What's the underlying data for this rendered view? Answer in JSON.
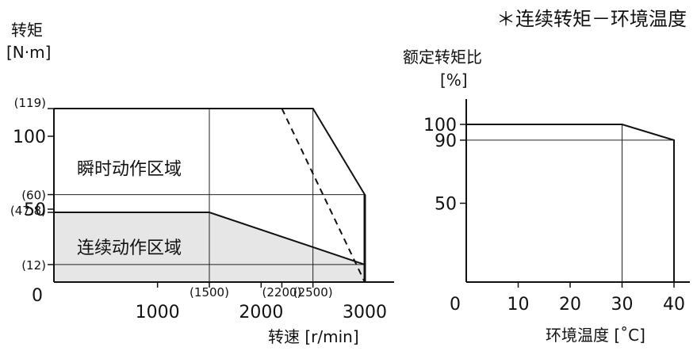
{
  "header_note": "＊连续转矩－环境温度",
  "chart_data": [
    {
      "type": "line",
      "ylabel": "转矩",
      "yunit": "[N·m]",
      "xlabel": "转速 [r/min]",
      "xlim": [
        0,
        3000
      ],
      "ylim": [
        0,
        119
      ],
      "x_ticks": [
        {
          "value": 1000,
          "label": "1000",
          "style": "major"
        },
        {
          "value": 1500,
          "label": "(1500)",
          "style": "minor"
        },
        {
          "value": 2000,
          "label": "2000",
          "style": "major"
        },
        {
          "value": 2200,
          "label": "(2200)",
          "style": "minor"
        },
        {
          "value": 2500,
          "label": "(2500)",
          "style": "minor"
        },
        {
          "value": 3000,
          "label": "3000",
          "style": "major"
        }
      ],
      "y_ticks": [
        {
          "value": 119,
          "label": "(119)",
          "style": "minor"
        },
        {
          "value": 100,
          "label": "100",
          "style": "major"
        },
        {
          "value": 60,
          "label": "(60)",
          "style": "minor"
        },
        {
          "value": 50,
          "label": "50",
          "style": "major"
        },
        {
          "value": 47.8,
          "label": "(47.8)",
          "style": "minor"
        },
        {
          "value": 12,
          "label": "(12)",
          "style": "minor"
        },
        {
          "value": 0,
          "label": "0",
          "style": "major"
        }
      ],
      "grid_x": [
        1500,
        2500
      ],
      "grid_y": [
        60,
        12
      ],
      "regions": [
        {
          "name": "瞬时动作区域",
          "label_at": [
            500,
            78
          ],
          "fill": "none",
          "points": [
            [
              0,
              0
            ],
            [
              0,
              119
            ],
            [
              2500,
              119
            ],
            [
              3000,
              60
            ],
            [
              3000,
              0
            ]
          ]
        },
        {
          "name": "连续动作区域",
          "label_at": [
            500,
            24
          ],
          "fill": "#e6e6e6",
          "points": [
            [
              0,
              0
            ],
            [
              0,
              47.8
            ],
            [
              1500,
              47.8
            ],
            [
              3000,
              12
            ],
            [
              3000,
              0
            ]
          ]
        }
      ],
      "dashed_line": [
        [
          2200,
          119
        ],
        [
          3000,
          0
        ]
      ]
    },
    {
      "type": "line",
      "ylabel": "额定转矩比",
      "yunit": "[%]",
      "xlabel": "环境温度 [˚C]",
      "xlim": [
        0,
        40
      ],
      "ylim": [
        0,
        100
      ],
      "x_ticks": [
        {
          "value": 0,
          "label": "0"
        },
        {
          "value": 10,
          "label": "10"
        },
        {
          "value": 20,
          "label": "20"
        },
        {
          "value": 30,
          "label": "30"
        },
        {
          "value": 40,
          "label": "40"
        }
      ],
      "y_ticks": [
        {
          "value": 100,
          "label": "100"
        },
        {
          "value": 90,
          "label": "90"
        },
        {
          "value": 50,
          "label": "50"
        }
      ],
      "series": [
        {
          "values": [
            [
              0,
              100
            ],
            [
              30,
              100
            ],
            [
              40,
              90
            ],
            [
              40,
              0
            ]
          ]
        }
      ],
      "grid_x": [
        30
      ],
      "grid_y": [
        90
      ]
    }
  ]
}
